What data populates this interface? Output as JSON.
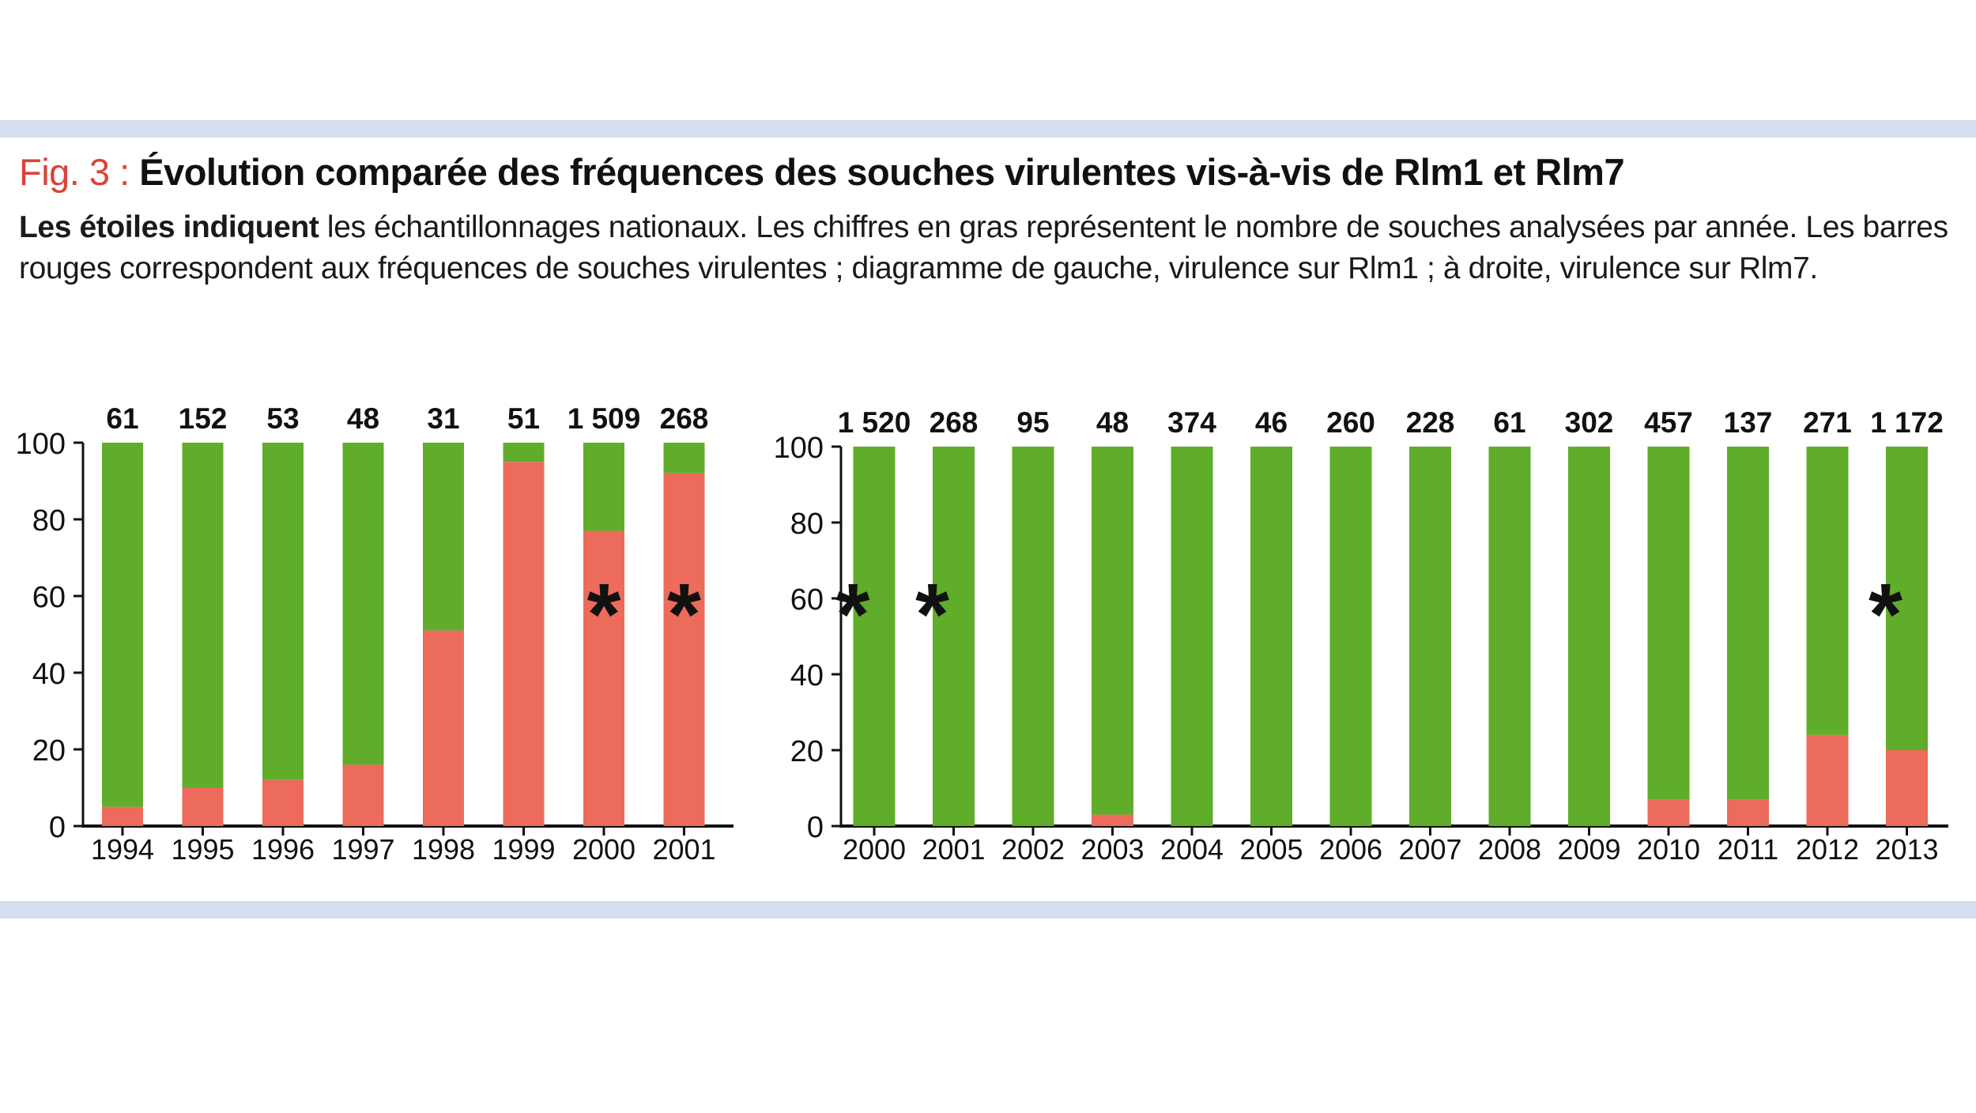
{
  "figure": {
    "label": "Fig. 3",
    "separator": " : ",
    "title": "Évolution comparée des fréquences des souches virulentes vis-à-vis de Rlm1 et Rlm7",
    "caption_bold": "Les étoiles indiquent",
    "caption_rest": " les échantillonnages nationaux. Les chiffres en gras représentent le nombre de souches analysées par année. Les barres rouges correspondent aux fréquences de souches virulentes ; diagramme de gauche, virulence sur Rlm1 ; à droite, virulence sur Rlm7."
  },
  "colors": {
    "virulent": "#ec6b5a",
    "non_virulent": "#5fad2a",
    "axis": "#111111"
  },
  "star_glyph": "*",
  "chart_data": [
    {
      "type": "bar",
      "stacked": true,
      "categories": [
        "1994",
        "1995",
        "1996",
        "1997",
        "1998",
        "1999",
        "2000",
        "2001"
      ],
      "counts": [
        "61",
        "152",
        "53",
        "48",
        "31",
        "51",
        "1 509",
        "268"
      ],
      "virulent_pct": [
        5,
        10,
        12,
        16,
        51,
        95,
        77,
        92
      ],
      "national_sampling": [
        false,
        false,
        false,
        false,
        false,
        false,
        true,
        true
      ],
      "ylim": [
        0,
        100
      ],
      "yticks": [
        "0",
        "20",
        "40",
        "60",
        "80",
        "100"
      ],
      "xlabel": "",
      "ylabel": ""
    },
    {
      "type": "bar",
      "stacked": true,
      "categories": [
        "2000",
        "2001",
        "2002",
        "2003",
        "2004",
        "2005",
        "2006",
        "2007",
        "2008",
        "2009",
        "2010",
        "2011",
        "2012",
        "2013"
      ],
      "counts": [
        "1 520",
        "268",
        "95",
        "48",
        "374",
        "46",
        "260",
        "228",
        "61",
        "302",
        "457",
        "137",
        "271",
        "1 172"
      ],
      "virulent_pct": [
        0,
        0,
        0,
        3,
        0,
        0,
        0,
        0,
        0,
        0,
        7,
        7,
        24,
        20
      ],
      "national_sampling": [
        true,
        true,
        false,
        false,
        false,
        false,
        false,
        false,
        false,
        false,
        false,
        false,
        false,
        true
      ],
      "ylim": [
        0,
        100
      ],
      "yticks": [
        "0",
        "20",
        "40",
        "60",
        "80",
        "100"
      ],
      "xlabel": "",
      "ylabel": ""
    }
  ]
}
